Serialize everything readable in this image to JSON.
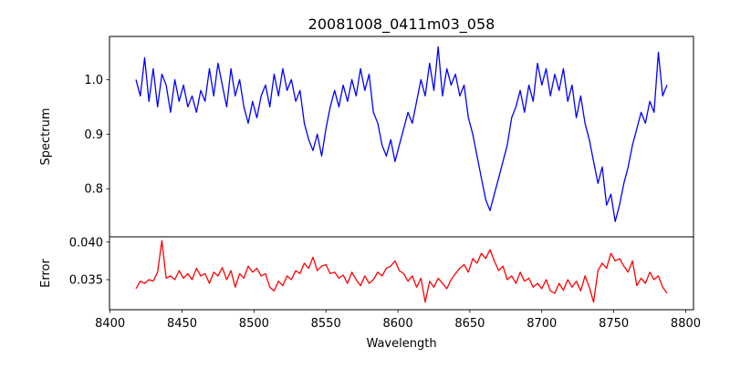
{
  "chart_data": [
    {
      "type": "line",
      "title": "20081008_0411m03_058",
      "xlabel": "",
      "ylabel": "Spectrum",
      "xlim": [
        8399.6,
        8805.4
      ],
      "ylim": [
        0.712,
        1.079
      ],
      "yticks": [
        0.8,
        0.9,
        1.0
      ],
      "ytick_labels": [
        "0.8",
        "0.9",
        "1.0"
      ],
      "grid": false,
      "series": [
        {
          "name": "Spectrum",
          "color": "#0000ff",
          "x_start": 8418,
          "x_step": 3,
          "values": [
            1.0,
            0.97,
            1.04,
            0.96,
            1.02,
            0.95,
            1.01,
            0.99,
            0.94,
            1.0,
            0.96,
            0.99,
            0.95,
            0.97,
            0.94,
            0.98,
            0.96,
            1.02,
            0.97,
            1.03,
            0.99,
            0.95,
            1.02,
            0.97,
            1.0,
            0.95,
            0.92,
            0.96,
            0.93,
            0.97,
            0.99,
            0.95,
            1.01,
            0.97,
            1.02,
            0.98,
            1.0,
            0.96,
            0.98,
            0.92,
            0.89,
            0.87,
            0.9,
            0.86,
            0.91,
            0.95,
            0.98,
            0.95,
            0.99,
            0.96,
            1.0,
            0.97,
            1.02,
            0.98,
            1.01,
            0.94,
            0.92,
            0.88,
            0.86,
            0.89,
            0.85,
            0.88,
            0.91,
            0.94,
            0.92,
            0.96,
            1.0,
            0.97,
            1.03,
            0.98,
            1.06,
            0.97,
            1.02,
            0.99,
            1.01,
            0.97,
            0.99,
            0.93,
            0.9,
            0.86,
            0.82,
            0.78,
            0.76,
            0.79,
            0.82,
            0.85,
            0.88,
            0.93,
            0.95,
            0.98,
            0.94,
            0.99,
            0.96,
            1.03,
            0.99,
            1.02,
            0.97,
            1.01,
            0.98,
            1.02,
            0.96,
            0.99,
            0.93,
            0.97,
            0.92,
            0.89,
            0.85,
            0.81,
            0.84,
            0.77,
            0.79,
            0.74,
            0.77,
            0.81,
            0.84,
            0.88,
            0.91,
            0.94,
            0.92,
            0.96,
            0.94,
            1.05,
            0.97,
            0.99
          ]
        }
      ]
    },
    {
      "type": "line",
      "title": "",
      "xlabel": "Wavelength",
      "ylabel": "Error",
      "xlim": [
        8399.6,
        8805.4
      ],
      "ylim": [
        0.031,
        0.0407
      ],
      "xticks": [
        8400,
        8450,
        8500,
        8550,
        8600,
        8650,
        8700,
        8750,
        8800
      ],
      "xtick_labels": [
        "8400",
        "8450",
        "8500",
        "8550",
        "8600",
        "8650",
        "8700",
        "8750",
        "8800"
      ],
      "yticks": [
        0.035,
        0.04
      ],
      "ytick_labels": [
        "0.035",
        "0.040"
      ],
      "grid": false,
      "series": [
        {
          "name": "Error",
          "color": "#ff0000",
          "x_start": 8418,
          "x_step": 3,
          "values": [
            0.0338,
            0.0348,
            0.0345,
            0.035,
            0.0348,
            0.036,
            0.0402,
            0.0352,
            0.0355,
            0.035,
            0.0362,
            0.0352,
            0.0358,
            0.035,
            0.0365,
            0.0355,
            0.0358,
            0.0345,
            0.036,
            0.0355,
            0.0366,
            0.035,
            0.0362,
            0.034,
            0.0358,
            0.0352,
            0.0368,
            0.036,
            0.0365,
            0.0355,
            0.0358,
            0.034,
            0.0335,
            0.0348,
            0.0342,
            0.0355,
            0.035,
            0.0362,
            0.0358,
            0.0372,
            0.0365,
            0.038,
            0.0362,
            0.0368,
            0.037,
            0.0358,
            0.036,
            0.0352,
            0.0356,
            0.0345,
            0.036,
            0.035,
            0.0342,
            0.0355,
            0.0345,
            0.035,
            0.036,
            0.0355,
            0.0365,
            0.0368,
            0.0375,
            0.0362,
            0.0358,
            0.0348,
            0.0355,
            0.034,
            0.0352,
            0.032,
            0.0348,
            0.034,
            0.0352,
            0.0345,
            0.0338,
            0.035,
            0.0358,
            0.0365,
            0.037,
            0.036,
            0.0378,
            0.0372,
            0.0385,
            0.0378,
            0.039,
            0.0375,
            0.0362,
            0.0368,
            0.035,
            0.0355,
            0.0345,
            0.036,
            0.0348,
            0.0352,
            0.034,
            0.0345,
            0.0338,
            0.035,
            0.0335,
            0.0332,
            0.0345,
            0.0336,
            0.035,
            0.034,
            0.0348,
            0.0335,
            0.0355,
            0.034,
            0.032,
            0.0362,
            0.0372,
            0.0365,
            0.0385,
            0.0375,
            0.0378,
            0.0368,
            0.036,
            0.0375,
            0.0342,
            0.0352,
            0.0345,
            0.036,
            0.035,
            0.0355,
            0.034,
            0.0332
          ]
        }
      ]
    }
  ]
}
